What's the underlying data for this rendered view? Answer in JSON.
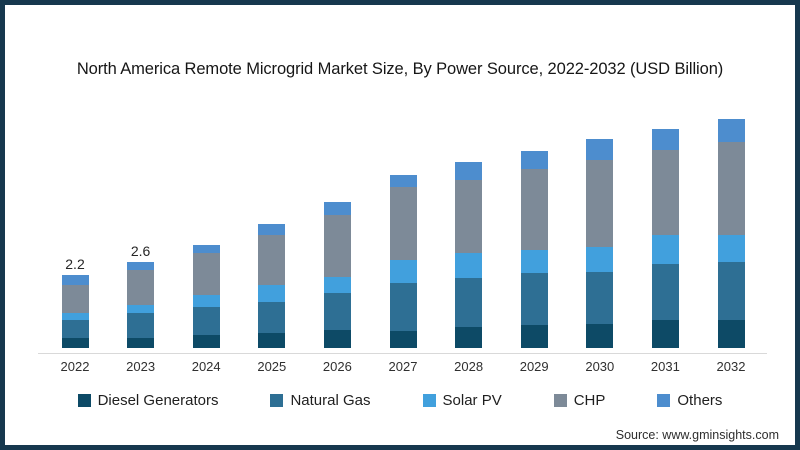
{
  "title": "North America Remote Microgrid Market Size, By Power Source, 2022-2032 (USD Billion)",
  "source": "Source: www.gminsights.com",
  "colors": {
    "frame_border": "#16384e",
    "axis_line": "#d9d9d9",
    "diesel_generators": "#0d4a66",
    "natural_gas": "#2e6f94",
    "solar_pv": "#41a0dd",
    "chp": "#7d8a98",
    "others": "#4d8dce"
  },
  "chart_data": {
    "type": "bar",
    "stacked": true,
    "title": "North America Remote Microgrid Market Size, By Power Source, 2022-2032 (USD Billion)",
    "unit": "USD Billion",
    "xlabel": "",
    "ylabel": "",
    "ylim": [
      0,
      7
    ],
    "grid": false,
    "legend_position": "bottom",
    "categories": [
      "2022",
      "2023",
      "2024",
      "2025",
      "2026",
      "2027",
      "2028",
      "2029",
      "2030",
      "2031",
      "2032"
    ],
    "series": [
      {
        "name": "Diesel Generators",
        "color": "#0d4a66",
        "values": [
          0.3,
          0.3,
          0.4,
          0.45,
          0.55,
          0.5,
          0.63,
          0.7,
          0.72,
          0.84,
          0.85
        ]
      },
      {
        "name": "Natural Gas",
        "color": "#2e6f94",
        "values": [
          0.55,
          0.75,
          0.85,
          0.95,
          1.1,
          1.45,
          1.47,
          1.55,
          1.58,
          1.7,
          1.75
        ]
      },
      {
        "name": "Solar PV",
        "color": "#41a0dd",
        "values": [
          0.2,
          0.25,
          0.35,
          0.5,
          0.5,
          0.7,
          0.75,
          0.7,
          0.75,
          0.86,
          0.8
        ]
      },
      {
        "name": "CHP",
        "color": "#7d8a98",
        "values": [
          0.85,
          1.05,
          1.25,
          1.5,
          1.85,
          2.2,
          2.21,
          2.45,
          2.6,
          2.55,
          2.8
        ]
      },
      {
        "name": "Others",
        "color": "#4d8dce",
        "values": [
          0.3,
          0.25,
          0.25,
          0.35,
          0.4,
          0.35,
          0.54,
          0.55,
          0.65,
          0.65,
          0.7
        ]
      }
    ],
    "totals": [
      2.2,
      2.6,
      3.1,
      3.75,
      4.4,
      5.2,
      5.6,
      5.95,
      6.3,
      6.6,
      6.9
    ],
    "data_labels": {
      "2022": "2.2",
      "2023": "2.6"
    }
  },
  "legend": {
    "items": [
      {
        "label": "Diesel Generators",
        "color": "#0d4a66"
      },
      {
        "label": "Natural Gas",
        "color": "#2e6f94"
      },
      {
        "label": "Solar PV",
        "color": "#41a0dd"
      },
      {
        "label": "CHP",
        "color": "#7d8a98"
      },
      {
        "label": "Others",
        "color": "#4d8dce"
      }
    ]
  }
}
